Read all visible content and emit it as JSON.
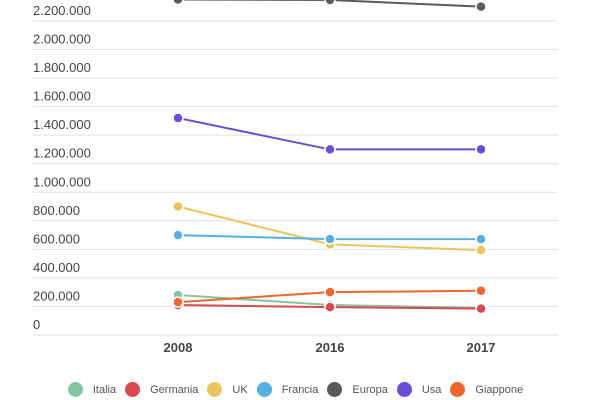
{
  "chart_data": {
    "type": "line",
    "title": "",
    "xlabel": "",
    "ylabel": "",
    "categories": [
      "2008",
      "2016",
      "2017"
    ],
    "ylim": [
      0,
      2400000
    ],
    "yticks": [
      0,
      200000,
      400000,
      600000,
      800000,
      1000000,
      1200000,
      1400000,
      1600000,
      1800000,
      2000000,
      2200000
    ],
    "ytick_labels": [
      "0",
      "200.000",
      "400.000",
      "600.000",
      "800.000",
      "1.000.000",
      "1.200.000",
      "1.400.000",
      "1.600.000",
      "1.800.000",
      "2.000.000",
      "2.200.000"
    ],
    "grid": true,
    "legend_placement": "bottom",
    "series": [
      {
        "name": "Italia",
        "color": "#86c4a0",
        "values": [
          280000,
          210000,
          190000
        ]
      },
      {
        "name": "Germania",
        "color": "#d9484f",
        "values": [
          210000,
          195000,
          185000
        ]
      },
      {
        "name": "UK",
        "color": "#ecc45f",
        "values": [
          900000,
          635000,
          595000
        ]
      },
      {
        "name": "Francia",
        "color": "#56b1e2",
        "values": [
          700000,
          672000,
          672000
        ]
      },
      {
        "name": "Europa",
        "color": "#5a5a5e",
        "values": [
          2350000,
          null,
          2300000
        ]
      },
      {
        "name": "Usa",
        "color": "#6a4fd6",
        "values": [
          1520000,
          1300000,
          1300000
        ]
      },
      {
        "name": "Giappone",
        "color": "#f0652f",
        "values": [
          230000,
          300000,
          310000
        ]
      }
    ]
  }
}
